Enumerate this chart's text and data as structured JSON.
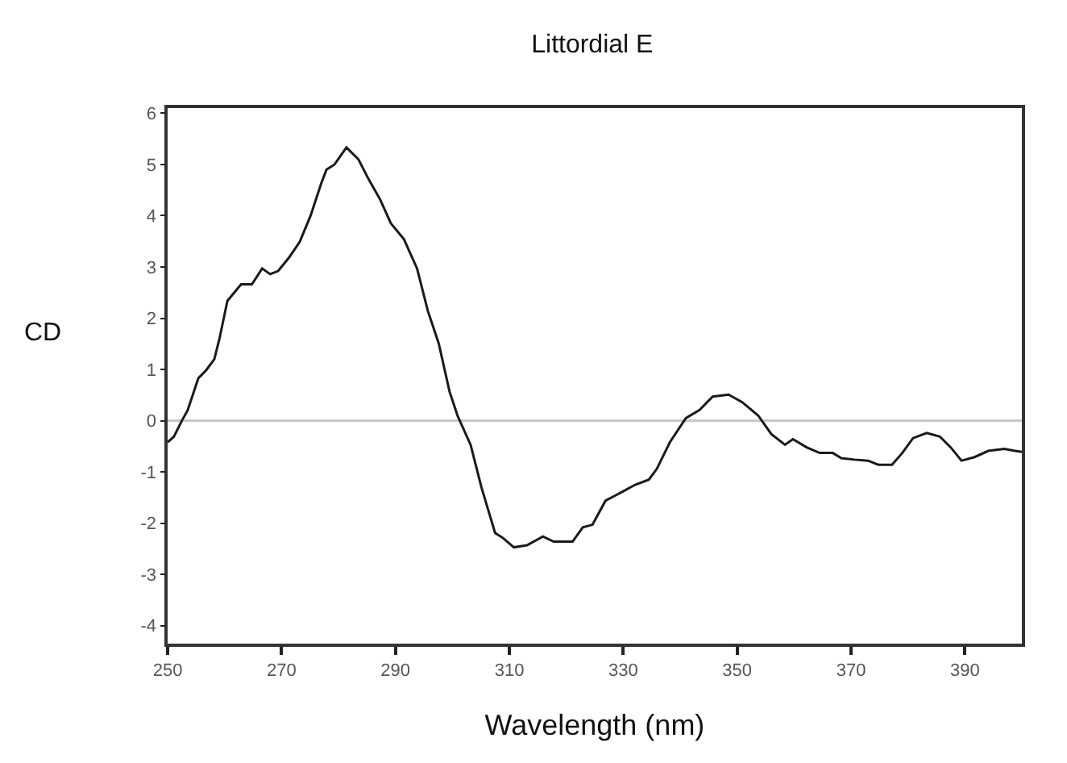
{
  "chart_data": {
    "type": "line",
    "title": "Littordial E",
    "xlabel": "Wavelength (nm)",
    "ylabel": "CD",
    "xlim": [
      250,
      400
    ],
    "xticks": [
      250,
      270,
      290,
      310,
      330,
      350,
      370,
      390
    ],
    "ylim": [
      -4.35,
      6.1
    ],
    "yticks": [
      -4,
      -3,
      -2,
      -1,
      0,
      1,
      2,
      3,
      4,
      5,
      6
    ],
    "grid": false,
    "marker": "none",
    "line_style": "solid",
    "ref_lines": [
      {
        "axis": "y",
        "value": 0,
        "color": "#c8c8c8",
        "line_style": "solid"
      }
    ],
    "series": [
      {
        "color": "#1a1a1a",
        "x": [
          250,
          251.1,
          252.5,
          253.5,
          255.4,
          256.8,
          258.2,
          259.1,
          260.5,
          262.9,
          264.8,
          266.6,
          268,
          269.4,
          271.3,
          273.2,
          275.1,
          277,
          277.9,
          279.3,
          281.4,
          283.5,
          285.4,
          287.3,
          289.2,
          291.5,
          293.8,
          295.7,
          297.6,
          299.5,
          300.9,
          303.2,
          305.1,
          307.5,
          308.9,
          310.8,
          313.1,
          315.9,
          317.8,
          321.1,
          322.9,
          324.6,
          326.9,
          329.8,
          332.1,
          334.5,
          335.9,
          338.2,
          341.0,
          343.4,
          345.7,
          348.5,
          350.9,
          353.7,
          356.0,
          358.4,
          359.8,
          362.2,
          364.5,
          366.8,
          368.3,
          370.6,
          373.0,
          374.8,
          377.2,
          379.0,
          380.9,
          383.3,
          385.6,
          387.5,
          389.4,
          391.7,
          394.1,
          396.9,
          398.8,
          400
        ],
        "values": [
          -0.42,
          -0.31,
          0,
          0.2,
          0.83,
          0.99,
          1.2,
          1.6,
          2.34,
          2.66,
          2.66,
          2.97,
          2.86,
          2.92,
          3.18,
          3.49,
          4.0,
          4.64,
          4.9,
          5.0,
          5.33,
          5.1,
          4.69,
          4.32,
          3.85,
          3.54,
          2.97,
          2.14,
          1.51,
          0.57,
          0.1,
          -0.47,
          -1.3,
          -2.19,
          -2.29,
          -2.47,
          -2.43,
          -2.26,
          -2.36,
          -2.36,
          -2.08,
          -2.03,
          -1.56,
          -1.39,
          -1.25,
          -1.15,
          -0.94,
          -0.42,
          0.05,
          0.21,
          0.47,
          0.51,
          0.36,
          0.1,
          -0.26,
          -0.47,
          -0.36,
          -0.52,
          -0.63,
          -0.63,
          -0.73,
          -0.76,
          -0.78,
          -0.86,
          -0.86,
          -0.63,
          -0.34,
          -0.24,
          -0.31,
          -0.52,
          -0.78,
          -0.71,
          -0.59,
          -0.55,
          -0.59,
          -0.61
        ]
      }
    ]
  }
}
